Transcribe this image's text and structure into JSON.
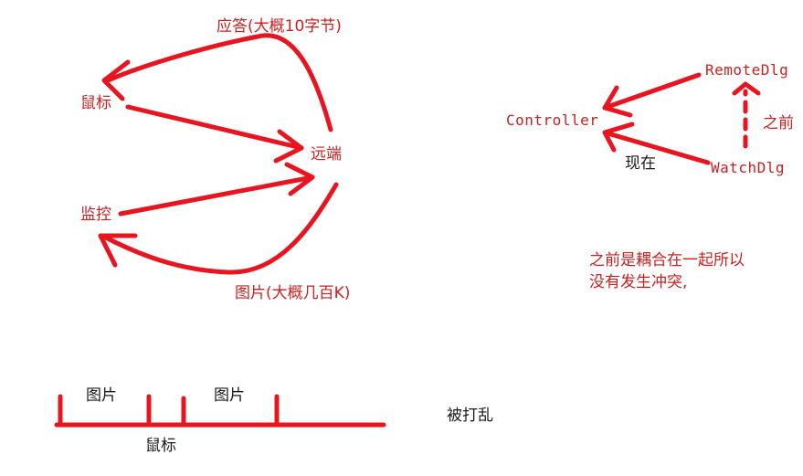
{
  "colors": {
    "background": "#ffffff",
    "stroke": "#e8141f",
    "label_text": "#cc1f1f",
    "black_text": "#1a1a1a"
  },
  "left_diagram": {
    "reply_label": "应答(大概10字节)",
    "mouse_label": "鼠标",
    "remote_label": "远端",
    "monitor_label": "监控",
    "image_label": "图片(大概几百K)"
  },
  "right_diagram": {
    "remote_dlg": "RemoteDlg",
    "controller": "Controller",
    "watch_dlg": "WatchDlg",
    "before_label": "之前",
    "now_label": "现在",
    "note_line1": "之前是耦合在一起所以",
    "note_line2": "没有发生冲突,"
  },
  "timeline": {
    "image_label_1": "图片",
    "image_label_2": "图片",
    "mouse_label": "鼠标",
    "disrupted_label": "被打乱"
  }
}
